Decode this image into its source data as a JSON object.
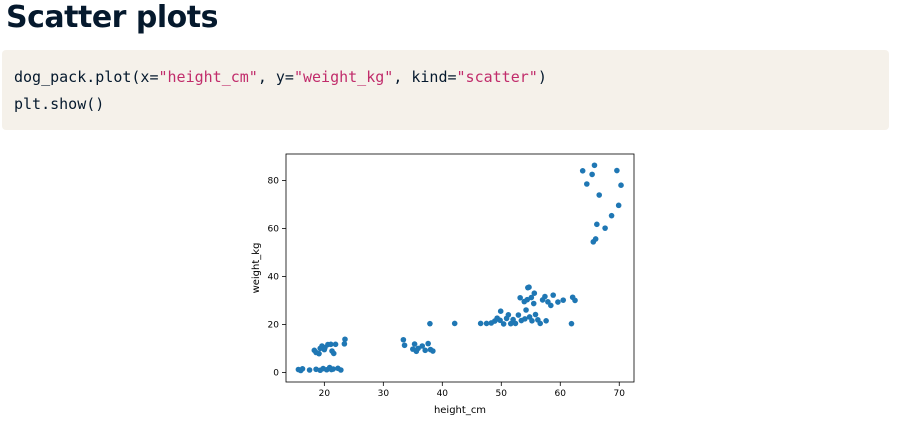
{
  "slide": {
    "title": "Scatter plots"
  },
  "code": {
    "line1": [
      {
        "t": "dog_pack.plot(x=",
        "k": "plain"
      },
      {
        "t": "\"height_cm\"",
        "k": "str"
      },
      {
        "t": ", y=",
        "k": "plain"
      },
      {
        "t": "\"weight_kg\"",
        "k": "str"
      },
      {
        "t": ", kind=",
        "k": "plain"
      },
      {
        "t": "\"scatter\"",
        "k": "str"
      },
      {
        "t": ")",
        "k": "plain"
      }
    ],
    "line2": "plt.show()"
  },
  "colors": {
    "marker": "#1f77b4",
    "string": "#c12c6b",
    "code_bg": "#f5f1ea"
  },
  "chart_data": {
    "type": "scatter",
    "xlabel": "height_cm",
    "ylabel": "weight_kg",
    "xlim": [
      13.5,
      72.5
    ],
    "ylim": [
      -4,
      91
    ],
    "xticks": [
      20,
      30,
      40,
      50,
      60,
      70
    ],
    "yticks": [
      0,
      20,
      40,
      60,
      80
    ],
    "grid": false,
    "points": [
      [
        15.6,
        1.2
      ],
      [
        16.0,
        0.8
      ],
      [
        16.3,
        1.5
      ],
      [
        17.5,
        1.0
      ],
      [
        18.6,
        1.3
      ],
      [
        19.3,
        0.9
      ],
      [
        19.8,
        1.6
      ],
      [
        20.4,
        1.1
      ],
      [
        20.9,
        2.0
      ],
      [
        21.5,
        1.4
      ],
      [
        22.3,
        1.7
      ],
      [
        22.8,
        1.0
      ],
      [
        21.2,
        1.2
      ],
      [
        18.3,
        9.2
      ],
      [
        18.6,
        8.3
      ],
      [
        19.1,
        7.8
      ],
      [
        19.3,
        10.0
      ],
      [
        19.6,
        11.0
      ],
      [
        20.1,
        10.3
      ],
      [
        20.6,
        11.6
      ],
      [
        21.1,
        11.7
      ],
      [
        21.3,
        8.9
      ],
      [
        21.6,
        7.9
      ],
      [
        23.4,
        11.9
      ],
      [
        23.5,
        13.8
      ],
      [
        20.0,
        9.5
      ],
      [
        21.9,
        11.7
      ],
      [
        33.4,
        13.6
      ],
      [
        33.6,
        11.3
      ],
      [
        35.0,
        9.7
      ],
      [
        35.3,
        11.8
      ],
      [
        35.6,
        8.8
      ],
      [
        35.9,
        10.0
      ],
      [
        36.6,
        11.0
      ],
      [
        37.1,
        9.2
      ],
      [
        37.6,
        12.0
      ],
      [
        38.0,
        9.5
      ],
      [
        38.4,
        8.9
      ],
      [
        37.9,
        20.3
      ],
      [
        42.1,
        20.4
      ],
      [
        46.5,
        20.4
      ],
      [
        47.5,
        20.4
      ],
      [
        48.3,
        20.6
      ],
      [
        48.9,
        21.4
      ],
      [
        49.3,
        22.6
      ],
      [
        49.8,
        21.7
      ],
      [
        49.9,
        25.5
      ],
      [
        50.4,
        20.2
      ],
      [
        50.9,
        22.5
      ],
      [
        51.2,
        24.0
      ],
      [
        51.6,
        20.3
      ],
      [
        52.0,
        22.0
      ],
      [
        52.4,
        20.4
      ],
      [
        52.9,
        23.9
      ],
      [
        53.2,
        31.1
      ],
      [
        53.4,
        21.6
      ],
      [
        53.9,
        29.5
      ],
      [
        54.0,
        22.3
      ],
      [
        54.2,
        26.0
      ],
      [
        54.4,
        30.3
      ],
      [
        54.5,
        35.3
      ],
      [
        54.7,
        35.5
      ],
      [
        54.8,
        23.1
      ],
      [
        55.1,
        31.2
      ],
      [
        55.2,
        21.5
      ],
      [
        55.5,
        28.7
      ],
      [
        55.6,
        33.0
      ],
      [
        55.8,
        24.1
      ],
      [
        56.2,
        21.9
      ],
      [
        56.6,
        20.4
      ],
      [
        57.0,
        30.2
      ],
      [
        57.4,
        31.6
      ],
      [
        57.6,
        21.5
      ],
      [
        57.9,
        29.4
      ],
      [
        58.4,
        27.9
      ],
      [
        58.8,
        32.2
      ],
      [
        59.6,
        29.3
      ],
      [
        60.5,
        30.1
      ],
      [
        61.9,
        20.3
      ],
      [
        62.1,
        31.3
      ],
      [
        62.5,
        30.0
      ],
      [
        63.8,
        84.0
      ],
      [
        64.5,
        78.5
      ],
      [
        65.4,
        82.5
      ],
      [
        65.8,
        86.3
      ],
      [
        66.6,
        73.9
      ],
      [
        65.6,
        54.4
      ],
      [
        66.0,
        55.6
      ],
      [
        66.2,
        61.7
      ],
      [
        67.6,
        60.1
      ],
      [
        68.7,
        65.3
      ],
      [
        69.6,
        84.1
      ],
      [
        69.9,
        69.6
      ],
      [
        70.3,
        78.0
      ]
    ]
  }
}
